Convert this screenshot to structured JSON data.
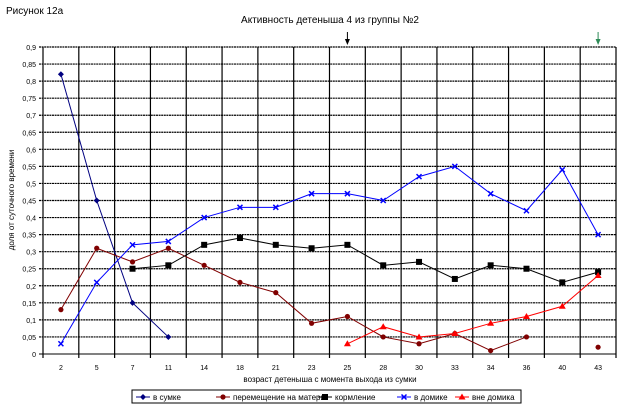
{
  "figure_label": "Рисунок 12а",
  "chart_data": {
    "type": "line",
    "title": "Активность детеныша 4 из группы №2",
    "xlabel": "возраст детеныша с момента выхода из сумки",
    "ylabel": "доля от суточного времени",
    "ylim": [
      0,
      0.9
    ],
    "ytick_step": 0.05,
    "yticks": [
      "0",
      "0,05",
      "0,1",
      "0,15",
      "0,2",
      "0,25",
      "0,3",
      "0,35",
      "0,4",
      "0,45",
      "0,5",
      "0,55",
      "0,6",
      "0,65",
      "0,7",
      "0,75",
      "0,8",
      "0,85",
      "0,9"
    ],
    "categories": [
      "2",
      "5",
      "7",
      "11",
      "14",
      "18",
      "21",
      "23",
      "25",
      "28",
      "30",
      "33",
      "34",
      "36",
      "40",
      "43"
    ],
    "grid": true,
    "legend_position": "bottom",
    "markers": [
      {
        "category_index": 8,
        "type": "arrow-down",
        "color": "#000000"
      },
      {
        "category_index": 15,
        "type": "arrow-down",
        "color": "#2e8b57"
      }
    ],
    "series": [
      {
        "name": "в сумке",
        "color": "#000080",
        "marker": "diamond",
        "values": [
          0.82,
          0.45,
          0.15,
          0.05,
          null,
          null,
          null,
          null,
          null,
          null,
          null,
          null,
          null,
          null,
          null,
          null
        ]
      },
      {
        "name": "перемещение на матери",
        "color": "#800000",
        "marker": "circle",
        "values": [
          0.13,
          0.31,
          0.27,
          0.31,
          0.26,
          0.21,
          0.18,
          0.09,
          0.11,
          0.05,
          0.03,
          0.06,
          0.01,
          0.05,
          null,
          0.02
        ]
      },
      {
        "name": "кормление",
        "color": "#000000",
        "marker": "square",
        "values": [
          null,
          null,
          0.25,
          0.26,
          0.32,
          0.34,
          0.32,
          0.31,
          0.32,
          0.26,
          0.27,
          0.22,
          0.26,
          0.25,
          0.21,
          0.24
        ]
      },
      {
        "name": "в домике",
        "color": "#0000ff",
        "marker": "x",
        "values": [
          0.03,
          0.21,
          0.32,
          0.33,
          0.4,
          0.43,
          0.43,
          0.47,
          0.47,
          0.45,
          0.52,
          0.55,
          0.47,
          0.42,
          0.54,
          0.35
        ]
      },
      {
        "name": "вне домика",
        "color": "#ff0000",
        "marker": "triangle",
        "values": [
          null,
          null,
          null,
          null,
          null,
          null,
          null,
          null,
          0.03,
          0.08,
          0.05,
          0.06,
          0.09,
          0.11,
          0.14,
          0.23
        ]
      }
    ]
  }
}
